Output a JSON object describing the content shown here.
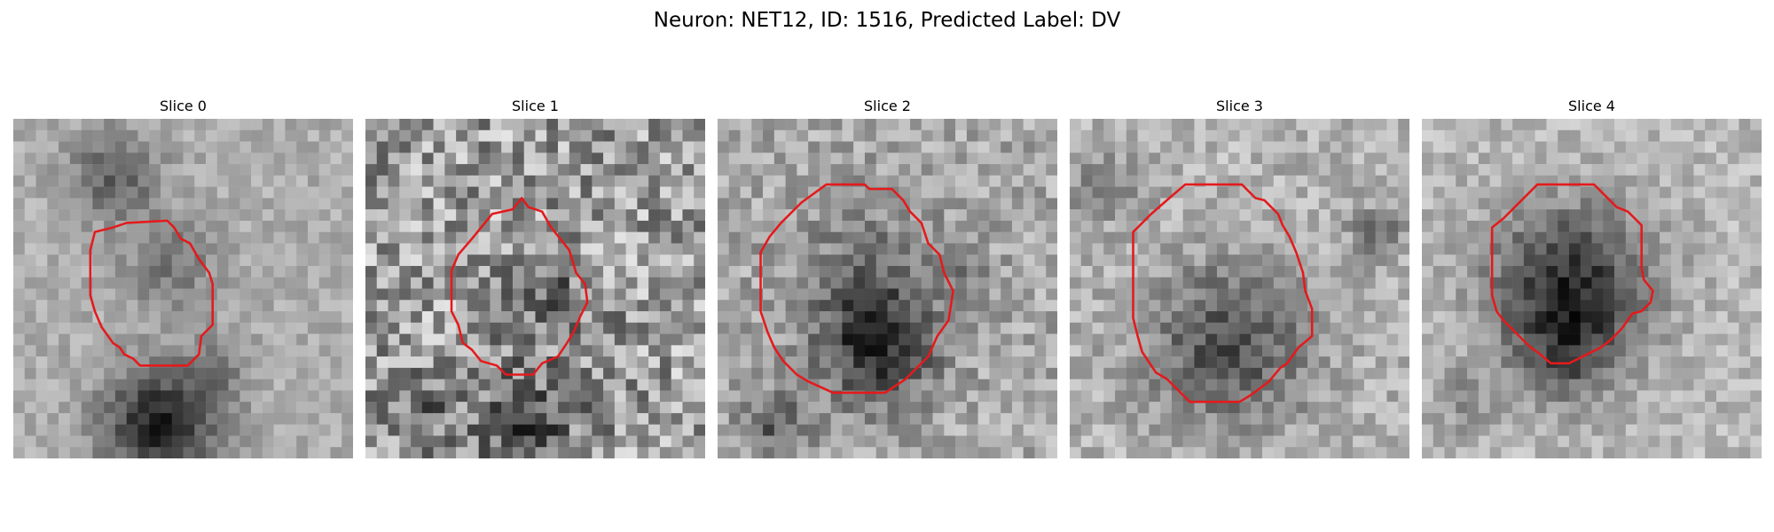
{
  "figure": {
    "suptitle": "Neuron: NET12, ID: 1516, Predicted Label: DV"
  },
  "colors": {
    "contour": "#e41a1c",
    "background": "#ffffff"
  },
  "slices": [
    {
      "title": "Slice 0",
      "image": "grayscale-microscopy-patch",
      "contour": [
        [
          7.2,
          10
        ],
        [
          8.8,
          9.6
        ],
        [
          10,
          9.2
        ],
        [
          13.6,
          9
        ],
        [
          14.2,
          9.6
        ],
        [
          14.8,
          10.6
        ],
        [
          15.6,
          11
        ],
        [
          16.4,
          12.4
        ],
        [
          17.3,
          13.6
        ],
        [
          17.6,
          14.6
        ],
        [
          17.6,
          18.2
        ],
        [
          16.6,
          19.2
        ],
        [
          16.4,
          20.8
        ],
        [
          15.4,
          21.8
        ],
        [
          11.2,
          21.8
        ],
        [
          10.6,
          21.2
        ],
        [
          9.8,
          20.8
        ],
        [
          9.4,
          20.2
        ],
        [
          8.8,
          19.8
        ],
        [
          7.8,
          18.4
        ],
        [
          7.2,
          17
        ],
        [
          6.8,
          15.6
        ],
        [
          6.8,
          11.6
        ]
      ]
    },
    {
      "title": "Slice 1",
      "image": "grayscale-microscopy-patch",
      "contour": [
        [
          11.2,
          8.4
        ],
        [
          13,
          8
        ],
        [
          13.8,
          7
        ],
        [
          14.4,
          7.8
        ],
        [
          15.6,
          8.2
        ],
        [
          16.4,
          9.6
        ],
        [
          17.2,
          10.6
        ],
        [
          18,
          11.6
        ],
        [
          18.6,
          13.6
        ],
        [
          19.4,
          14.6
        ],
        [
          19.6,
          16.2
        ],
        [
          19,
          17.4
        ],
        [
          18.4,
          18.8
        ],
        [
          17.8,
          19.8
        ],
        [
          17,
          21
        ],
        [
          15.6,
          21.6
        ],
        [
          14.8,
          22.6
        ],
        [
          12.4,
          22.6
        ],
        [
          11.6,
          21.8
        ],
        [
          10.2,
          21.4
        ],
        [
          9.4,
          20.4
        ],
        [
          8.6,
          19.8
        ],
        [
          8.2,
          18.2
        ],
        [
          7.6,
          17
        ],
        [
          7.6,
          13.4
        ],
        [
          8.2,
          12
        ],
        [
          9.4,
          10.6
        ]
      ]
    },
    {
      "title": "Slice 2",
      "image": "grayscale-microscopy-patch",
      "contour": [
        [
          9.6,
          5.8
        ],
        [
          13,
          5.8
        ],
        [
          13.4,
          6.2
        ],
        [
          15.4,
          6.2
        ],
        [
          16.4,
          7.2
        ],
        [
          17,
          8.2
        ],
        [
          18,
          9.2
        ],
        [
          18.6,
          11
        ],
        [
          19.6,
          12
        ],
        [
          20,
          13.6
        ],
        [
          20.8,
          15.2
        ],
        [
          20.4,
          17.8
        ],
        [
          19.4,
          19.2
        ],
        [
          18.6,
          21
        ],
        [
          16.6,
          23
        ],
        [
          14.8,
          24.2
        ],
        [
          10.2,
          24.2
        ],
        [
          8,
          23.2
        ],
        [
          7,
          22.6
        ],
        [
          5.8,
          21.4
        ],
        [
          5,
          20.2
        ],
        [
          4.4,
          18.8
        ],
        [
          3.8,
          17
        ],
        [
          3.8,
          11.8
        ],
        [
          4.6,
          10.4
        ],
        [
          5.6,
          9.2
        ],
        [
          7.4,
          7.4
        ]
      ]
    },
    {
      "title": "Slice 3",
      "image": "grayscale-microscopy-patch",
      "contour": [
        [
          10.2,
          5.8
        ],
        [
          15.2,
          5.8
        ],
        [
          16.4,
          7
        ],
        [
          17.2,
          7.2
        ],
        [
          18.4,
          8.4
        ],
        [
          18.8,
          9.4
        ],
        [
          19.4,
          10.4
        ],
        [
          20,
          11.8
        ],
        [
          20.6,
          13.6
        ],
        [
          20.8,
          15.2
        ],
        [
          21.4,
          16.8
        ],
        [
          21.4,
          19.2
        ],
        [
          20.2,
          20.2
        ],
        [
          19.2,
          21.6
        ],
        [
          18.6,
          22
        ],
        [
          17.6,
          23.2
        ],
        [
          16,
          24.4
        ],
        [
          15,
          25
        ],
        [
          10.6,
          25
        ],
        [
          9.6,
          24
        ],
        [
          8.6,
          23
        ],
        [
          7.6,
          22.4
        ],
        [
          6.4,
          20.6
        ],
        [
          6,
          19.2
        ],
        [
          5.6,
          17.6
        ],
        [
          5.6,
          10
        ],
        [
          7.2,
          8.4
        ],
        [
          8.8,
          7
        ]
      ]
    },
    {
      "title": "Slice 4",
      "image": "grayscale-microscopy-patch",
      "contour": [
        [
          10.2,
          5.8
        ],
        [
          15.2,
          5.8
        ],
        [
          17.2,
          7.8
        ],
        [
          18.2,
          8.2
        ],
        [
          19.4,
          9.4
        ],
        [
          19.4,
          13.2
        ],
        [
          19.6,
          14.2
        ],
        [
          20.4,
          15.2
        ],
        [
          20.2,
          16.2
        ],
        [
          19.4,
          17
        ],
        [
          18.6,
          17.2
        ],
        [
          17.6,
          18.6
        ],
        [
          16.6,
          19.6
        ],
        [
          15.8,
          20.2
        ],
        [
          14.6,
          20.8
        ],
        [
          13,
          21.6
        ],
        [
          11.4,
          21.6
        ],
        [
          10.2,
          20.6
        ],
        [
          9.6,
          20.2
        ],
        [
          8.6,
          19.2
        ],
        [
          7.2,
          17.8
        ],
        [
          6.6,
          17
        ],
        [
          6.2,
          15.6
        ],
        [
          6.2,
          9.6
        ],
        [
          7.2,
          8.8
        ]
      ]
    }
  ]
}
